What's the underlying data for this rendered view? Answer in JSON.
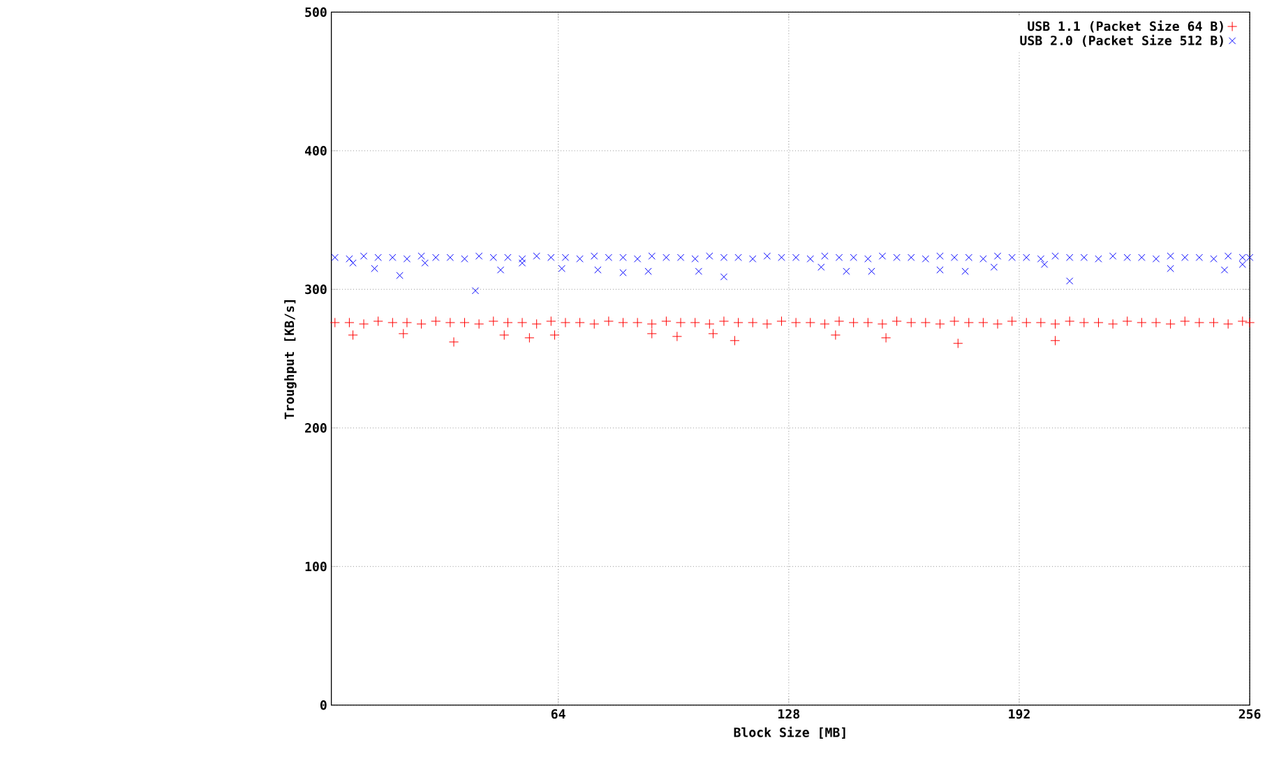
{
  "chart_data": {
    "type": "scatter",
    "xlabel": "Block Size [MB]",
    "ylabel": "Troughput [KB/s]",
    "xlim": [
      1,
      256
    ],
    "ylim": [
      0,
      500
    ],
    "xticks": [
      64,
      128,
      192,
      256
    ],
    "yticks": [
      0,
      100,
      200,
      300,
      400,
      500
    ],
    "grid": true,
    "legend": "top right",
    "series": [
      {
        "name": "USB 1.1 (Packet Size  64 B)",
        "color": "#ff0000",
        "marker": "plus",
        "x": [
          2,
          6,
          10,
          14,
          18,
          22,
          26,
          30,
          34,
          38,
          42,
          46,
          50,
          54,
          58,
          62,
          66,
          70,
          74,
          78,
          82,
          86,
          90,
          94,
          98,
          102,
          106,
          110,
          114,
          118,
          122,
          126,
          130,
          134,
          138,
          142,
          146,
          150,
          154,
          158,
          162,
          166,
          170,
          174,
          178,
          182,
          186,
          190,
          194,
          198,
          202,
          206,
          210,
          214,
          218,
          222,
          226,
          230,
          234,
          238,
          242,
          246,
          250,
          254,
          256,
          7,
          21,
          35,
          49,
          56,
          63,
          90,
          97,
          107,
          113,
          141,
          155,
          175,
          202
        ],
        "values": [
          276,
          276,
          275,
          277,
          276,
          276,
          275,
          277,
          276,
          276,
          275,
          277,
          276,
          276,
          275,
          277,
          276,
          276,
          275,
          277,
          276,
          276,
          275,
          277,
          276,
          276,
          275,
          277,
          276,
          276,
          275,
          277,
          276,
          276,
          275,
          277,
          276,
          276,
          275,
          277,
          276,
          276,
          275,
          277,
          276,
          276,
          275,
          277,
          276,
          276,
          275,
          277,
          276,
          276,
          275,
          277,
          276,
          276,
          275,
          277,
          276,
          276,
          275,
          277,
          276,
          267,
          268,
          262,
          267,
          265,
          267,
          268,
          266,
          268,
          263,
          267,
          265,
          261,
          263
        ]
      },
      {
        "name": "USB 2.0 (Packet Size 512 B)",
        "color": "#0000ff",
        "marker": "cross",
        "x": [
          2,
          6,
          10,
          14,
          18,
          22,
          26,
          30,
          34,
          38,
          42,
          46,
          50,
          54,
          58,
          62,
          66,
          70,
          74,
          78,
          82,
          86,
          90,
          94,
          98,
          102,
          106,
          110,
          114,
          118,
          122,
          126,
          130,
          134,
          138,
          142,
          146,
          150,
          154,
          158,
          162,
          166,
          170,
          174,
          178,
          182,
          186,
          190,
          194,
          198,
          202,
          206,
          210,
          214,
          218,
          222,
          226,
          230,
          234,
          238,
          242,
          246,
          250,
          254,
          256,
          7,
          13,
          20,
          27,
          41,
          48,
          54,
          65,
          75,
          82,
          89,
          103,
          110,
          137,
          144,
          151,
          170,
          177,
          185,
          199,
          206,
          234,
          249,
          254
        ],
        "values": [
          323,
          322,
          324,
          323,
          323,
          322,
          324,
          323,
          323,
          322,
          324,
          323,
          323,
          322,
          324,
          323,
          323,
          322,
          324,
          323,
          323,
          322,
          324,
          323,
          323,
          322,
          324,
          323,
          323,
          322,
          324,
          323,
          323,
          322,
          324,
          323,
          323,
          322,
          324,
          323,
          323,
          322,
          324,
          323,
          323,
          322,
          324,
          323,
          323,
          322,
          324,
          323,
          323,
          322,
          324,
          323,
          323,
          322,
          324,
          323,
          323,
          322,
          324,
          323,
          323,
          319,
          315,
          310,
          319,
          299,
          314,
          319,
          315,
          314,
          312,
          313,
          313,
          309,
          316,
          313,
          313,
          314,
          313,
          316,
          318,
          306,
          315,
          314,
          318
        ]
      }
    ]
  }
}
